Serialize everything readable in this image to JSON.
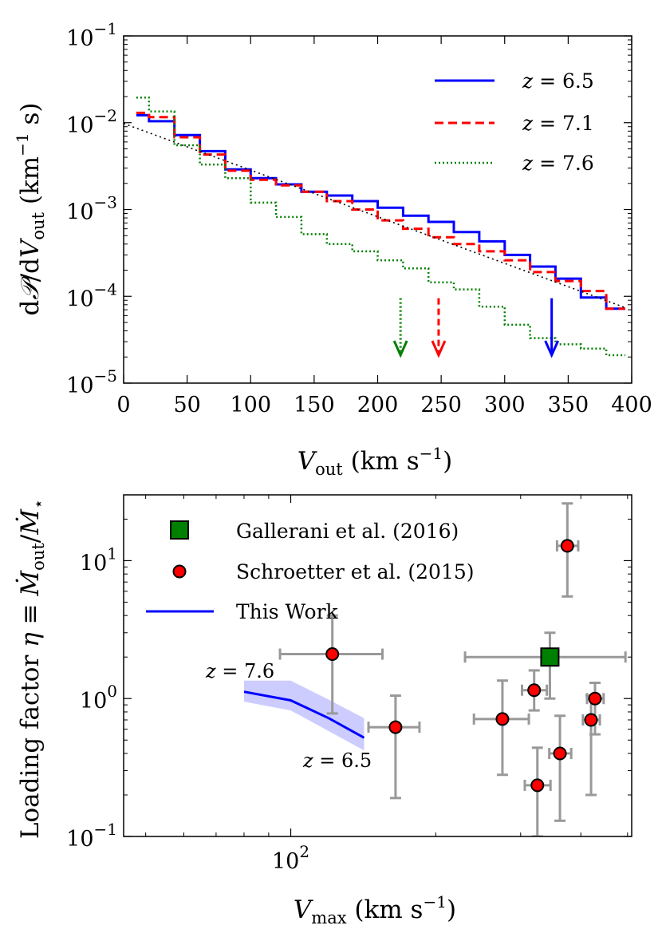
{
  "chart_data": [
    {
      "type": "line",
      "panel": "top",
      "xlabel": "V_out (km s^-1)",
      "ylabel": "dP/dV_out (km^-1 s)",
      "xscale": "linear",
      "yscale": "log",
      "xlim": [
        0,
        400
      ],
      "ylim": [
        1e-05,
        0.1
      ],
      "xticks": [
        0,
        50,
        100,
        150,
        200,
        250,
        300,
        350,
        400
      ],
      "yticks": [
        {
          "value": 0.1,
          "base": "10",
          "exp": "−1"
        },
        {
          "value": 0.01,
          "base": "10",
          "exp": "−2"
        },
        {
          "value": 0.001,
          "base": "10",
          "exp": "−3"
        },
        {
          "value": 0.0001,
          "base": "10",
          "exp": "−4"
        },
        {
          "value": 1e-05,
          "base": "10",
          "exp": "−5"
        }
      ],
      "legend_position": "top-right",
      "bin_edges": [
        10,
        20,
        40,
        60,
        80,
        100,
        120,
        140,
        160,
        180,
        200,
        220,
        240,
        260,
        280,
        300,
        320,
        340,
        360,
        380,
        395
      ],
      "series": [
        {
          "name": "z = 6.5",
          "label": "z = 6.5",
          "style": "solid",
          "color": "#0000ff",
          "values": [
            0.0122,
            0.0104,
            0.0072,
            0.0047,
            0.0029,
            0.0023,
            0.00195,
            0.0016,
            0.00145,
            0.00125,
            0.00105,
            0.00085,
            0.00072,
            0.00055,
            0.00043,
            0.0003,
            0.00022,
            0.00016,
            9.7e-05,
            7.2e-05
          ]
        },
        {
          "name": "z = 7.1",
          "label": "z = 7.1",
          "style": "dashed",
          "color": "#ff0000",
          "values": [
            0.013,
            0.0116,
            0.0068,
            0.0043,
            0.0028,
            0.0022,
            0.0019,
            0.0016,
            0.00125,
            0.001,
            0.00075,
            0.0006,
            0.00048,
            0.0004,
            0.00033,
            0.00026,
            0.00019,
            0.00015,
            0.000115,
            7.2e-05
          ]
        },
        {
          "name": "z = 7.6",
          "label": "z = 7.6",
          "style": "dotted",
          "color": "#008000",
          "values": [
            0.0195,
            0.0135,
            0.0055,
            0.0033,
            0.0023,
            0.0012,
            0.00082,
            0.00052,
            0.0004,
            0.00033,
            0.00026,
            0.00021,
            0.000145,
            0.00012,
            7.6e-05,
            4.7e-05,
            3.3e-05,
            2.8e-05,
            2.5e-05,
            2.1e-05
          ]
        }
      ],
      "fit_line": {
        "name": "exponential fit",
        "style": "dotted",
        "color": "#000000",
        "x": [
          0,
          395
        ],
        "y": [
          0.0098,
          7.4e-05
        ]
      },
      "arrows": [
        {
          "series": "z = 7.6",
          "x": 218,
          "y_from": 9.5e-05,
          "y_to": 2.1e-05,
          "color": "#008000",
          "style": "dotted"
        },
        {
          "series": "z = 7.1",
          "x": 248,
          "y_from": 9.5e-05,
          "y_to": 2.1e-05,
          "color": "#ff0000",
          "style": "dashed"
        },
        {
          "series": "z = 6.5",
          "x": 337,
          "y_from": 9.5e-05,
          "y_to": 2.1e-05,
          "color": "#0000ff",
          "style": "solid"
        }
      ]
    },
    {
      "type": "scatter",
      "panel": "bottom",
      "xlabel": "V_max (km s^-1)",
      "ylabel": "Loading factor η ≡ Ṁ_out/Ṁ_⋆",
      "xscale": "log",
      "yscale": "log",
      "xlim": [
        45,
        510
      ],
      "ylim": [
        0.1,
        30
      ],
      "xticks": [
        {
          "value": 100,
          "base": "10",
          "exp": "2"
        }
      ],
      "yticks": [
        {
          "value": 0.1,
          "base": "10",
          "exp": "−1"
        },
        {
          "value": 1,
          "base": "10",
          "exp": "0"
        },
        {
          "value": 10,
          "base": "10",
          "exp": "1"
        }
      ],
      "legend_position": "top-left",
      "legend": [
        "Gallerani et al. (2016)",
        "Schroetter et al. (2015)",
        "This Work"
      ],
      "gallerani": {
        "name": "Gallerani et al. (2016)",
        "color": "#008000",
        "x": 345,
        "y": 2.0,
        "xerr": [
          230,
          495
        ],
        "yerr": [
          1.0,
          3.0
        ]
      },
      "schroetter": {
        "name": "Schroetter et al. (2015)",
        "color": "#ff0000",
        "points": [
          {
            "x": 122,
            "y": 2.1,
            "xerr": [
              95,
              155
            ],
            "yerr": [
              0.78,
              4.0
            ]
          },
          {
            "x": 165,
            "y": 0.62,
            "xerr": [
              145,
              185
            ],
            "yerr": [
              0.19,
              1.05
            ]
          },
          {
            "x": 275,
            "y": 0.71,
            "xerr": [
              240,
              312
            ],
            "yerr": [
              0.28,
              1.35
            ]
          },
          {
            "x": 320,
            "y": 1.15,
            "xerr": [
              302,
              340
            ],
            "yerr": [
              0.82,
              1.6
            ]
          },
          {
            "x": 325,
            "y": 0.235,
            "xerr": [
              306,
              346
            ],
            "yerr": [
              0.1,
              0.44
            ]
          },
          {
            "x": 362,
            "y": 0.4,
            "xerr": [
              344,
              382
            ],
            "yerr": [
              0.13,
              0.75
            ]
          },
          {
            "x": 375,
            "y": 12.8,
            "xerr": [
              357,
              395
            ],
            "yerr": [
              5.5,
              26.0
            ]
          },
          {
            "x": 420,
            "y": 0.7,
            "xerr": [
              404,
              438
            ],
            "yerr": [
              0.2,
              1.05
            ]
          },
          {
            "x": 428,
            "y": 1.0,
            "xerr": [
              412,
              446
            ],
            "yerr": [
              0.55,
              1.3
            ]
          }
        ]
      },
      "this_work": {
        "name": "This Work",
        "color": "#0000ff",
        "x": [
          80,
          100,
          120,
          142
        ],
        "y": [
          1.12,
          0.97,
          0.72,
          0.52
        ],
        "band_low": [
          0.95,
          0.82,
          0.58,
          0.42
        ],
        "band_high": [
          1.35,
          1.35,
          0.98,
          0.72
        ]
      },
      "annotations": [
        {
          "label": "z = 7.6"
        },
        {
          "label": "z = 6.5"
        }
      ]
    }
  ]
}
